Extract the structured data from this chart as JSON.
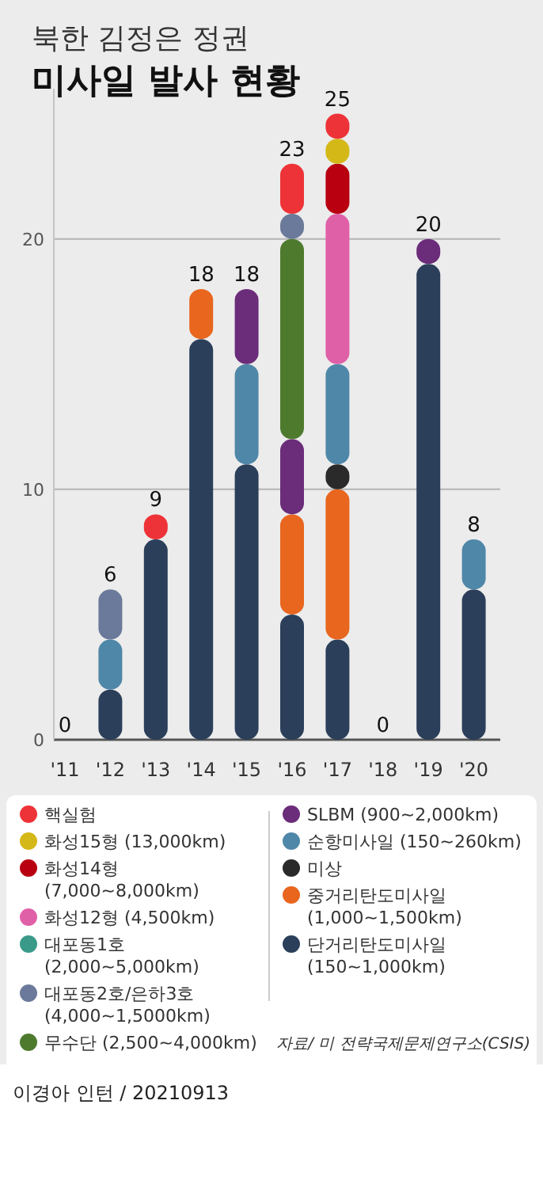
{
  "chart_data": {
    "type": "bar",
    "stacked": true,
    "subtitle": "북한 김정은 정권",
    "title": "미사일 발사 현황",
    "categories": [
      "'11",
      "'12",
      "'13",
      "'14",
      "'15",
      "'16",
      "'17",
      "'18",
      "'19",
      "'20"
    ],
    "series": [
      {
        "name": "단거리탄도미사일 (150~1,000km)",
        "color": "#2b3f5a",
        "values": [
          0,
          2,
          8,
          16,
          11,
          5,
          4,
          0,
          19,
          6
        ]
      },
      {
        "name": "중거리탄도미사일 (1,000~1,500km)",
        "color": "#e8661e",
        "values": [
          0,
          0,
          0,
          2,
          0,
          4,
          6,
          0,
          0,
          0
        ]
      },
      {
        "name": "미상",
        "color": "#2a2a2a",
        "values": [
          0,
          0,
          0,
          0,
          0,
          0,
          1,
          0,
          0,
          0
        ]
      },
      {
        "name": "순항미사일 (150~260km)",
        "color": "#4f87a8",
        "values": [
          0,
          2,
          0,
          0,
          4,
          0,
          4,
          0,
          0,
          2
        ]
      },
      {
        "name": "SLBM (900~2,000km)",
        "color": "#6b2c7a",
        "values": [
          0,
          0,
          0,
          0,
          3,
          3,
          0,
          0,
          1,
          0
        ]
      },
      {
        "name": "무수단 (2,500~4,000km)",
        "color": "#4e7a2e",
        "values": [
          0,
          0,
          0,
          0,
          0,
          8,
          0,
          0,
          0,
          0
        ]
      },
      {
        "name": "대포동2호/은하3호 (4,000~1,5000km)",
        "color": "#6b7a9a",
        "values": [
          0,
          2,
          0,
          0,
          0,
          1,
          0,
          0,
          0,
          0
        ]
      },
      {
        "name": "대포동1호 (2,000~5,000km)",
        "color": "#3a9a8a",
        "values": [
          0,
          0,
          0,
          0,
          0,
          0,
          0,
          0,
          0,
          0
        ]
      },
      {
        "name": "화성12형 (4,500km)",
        "color": "#e060a8",
        "values": [
          0,
          0,
          0,
          0,
          0,
          0,
          6,
          0,
          0,
          0
        ]
      },
      {
        "name": "화성14형 (7,000~8,000km)",
        "color": "#b80010",
        "values": [
          0,
          0,
          0,
          0,
          0,
          0,
          2,
          0,
          0,
          0
        ]
      },
      {
        "name": "화성15형 (13,000km)",
        "color": "#d4b818",
        "values": [
          0,
          0,
          0,
          0,
          0,
          0,
          1,
          0,
          0,
          0
        ]
      },
      {
        "name": "핵실험",
        "color": "#ee3338",
        "values": [
          0,
          0,
          1,
          0,
          0,
          2,
          1,
          0,
          0,
          0
        ]
      }
    ],
    "totals": [
      "0",
      "6",
      "9",
      "18",
      "18",
      "23",
      "25",
      "0",
      "20",
      "8"
    ],
    "ylim": [
      0,
      26
    ],
    "yticks": [
      0,
      10,
      20
    ],
    "grid": "y",
    "legend": "bottom",
    "annotations": [
      "자료/ 미 전략국제문제연구소(CSIS)",
      "이경아 인턴 / 20210913"
    ]
  }
}
